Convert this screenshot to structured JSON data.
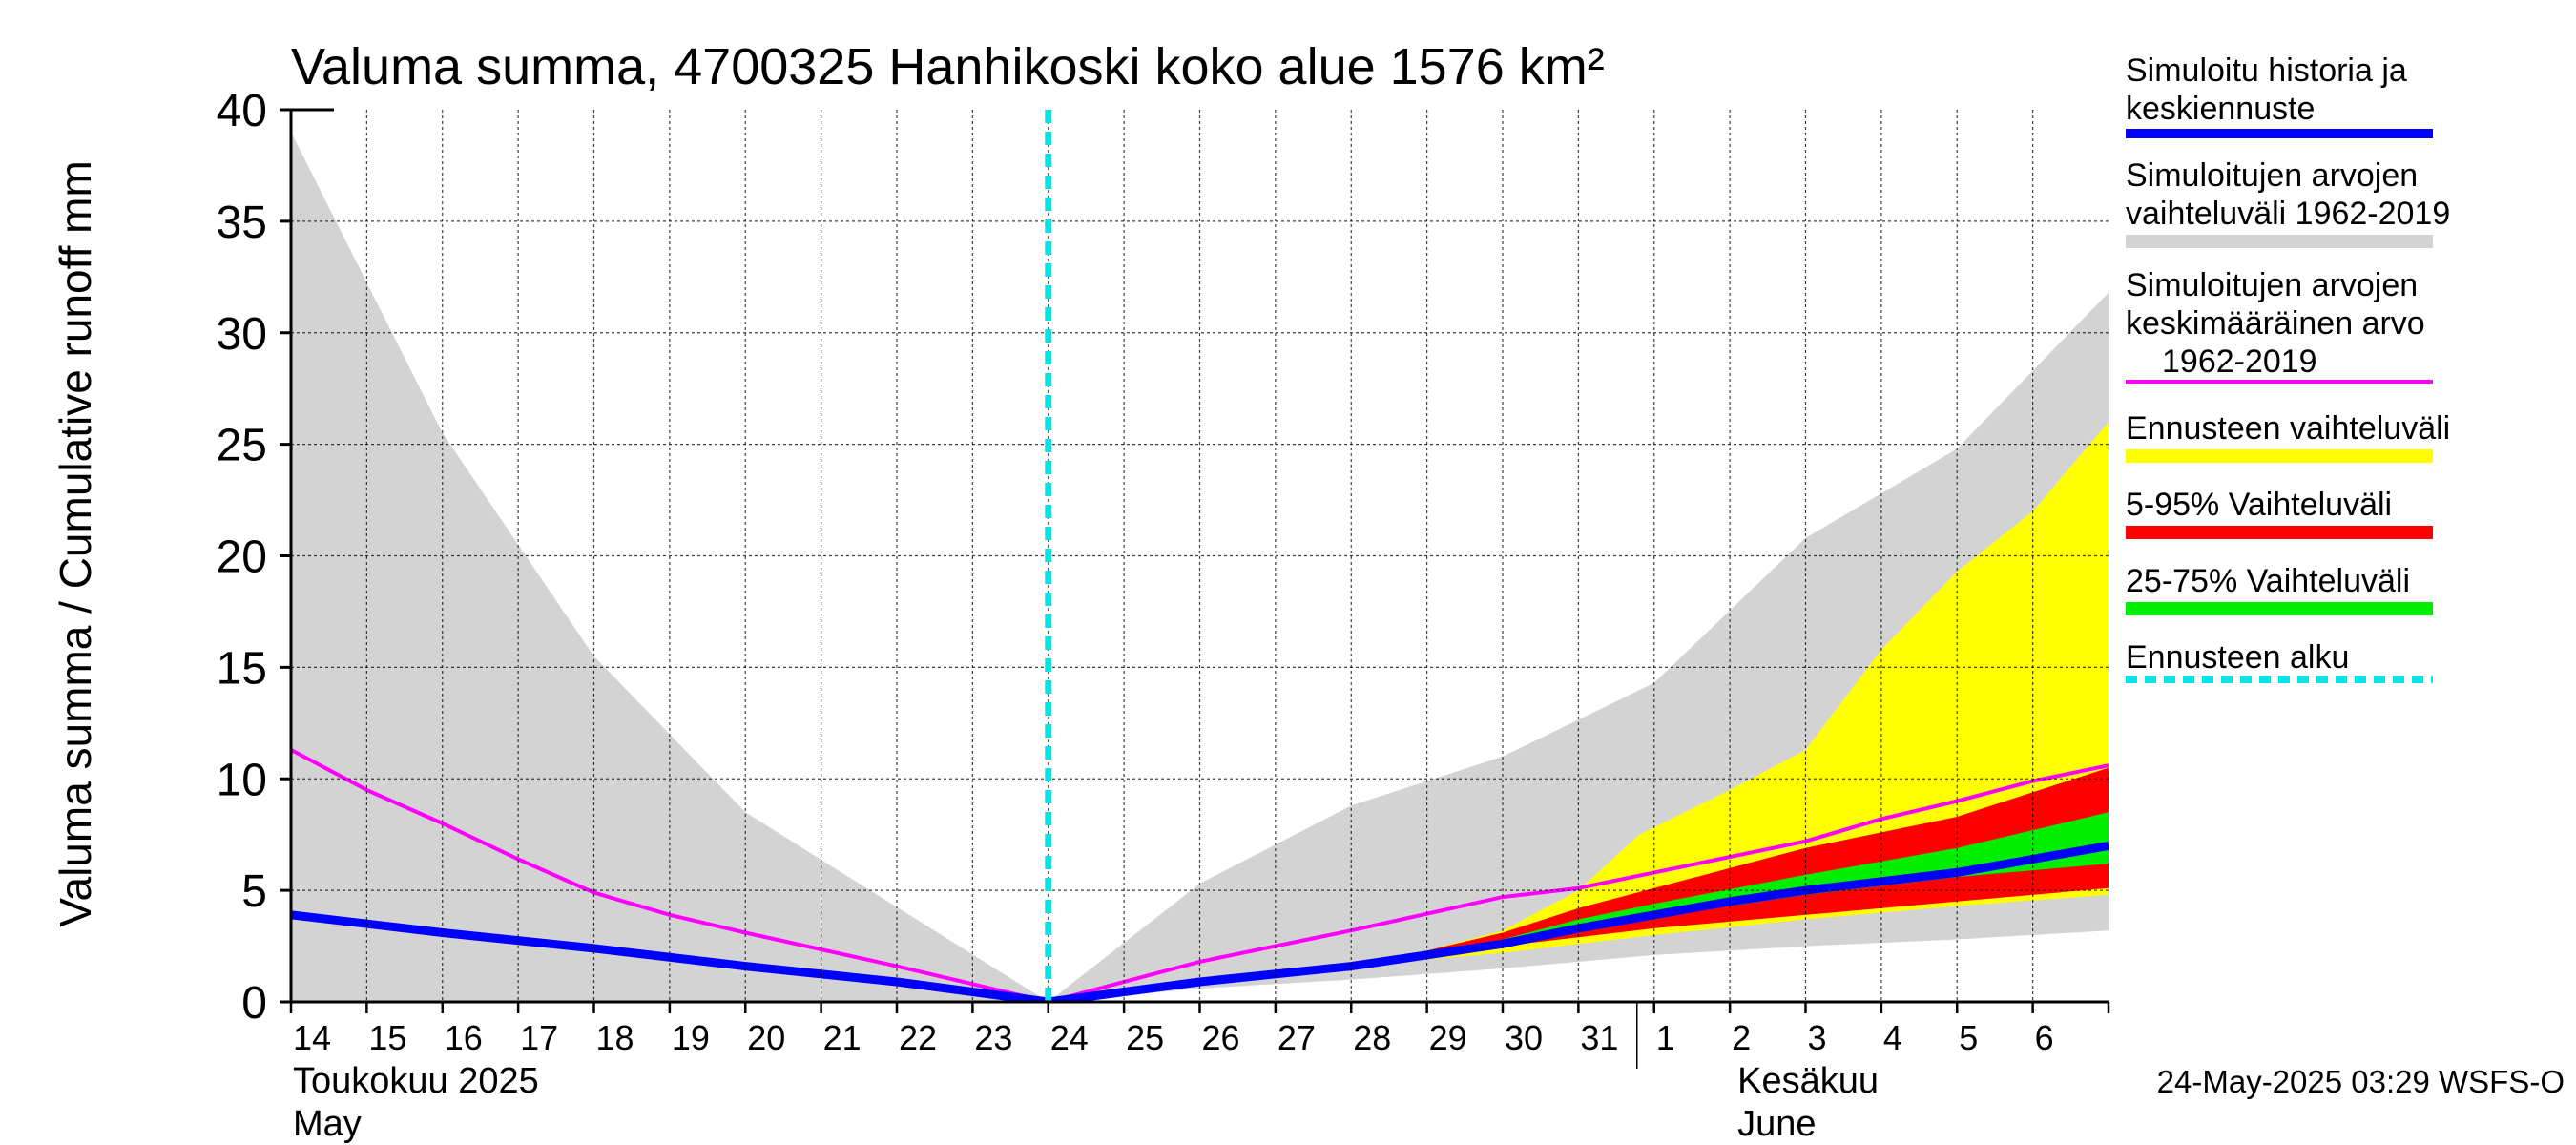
{
  "chart_data": {
    "type": "area",
    "title": "Valuma summa, 4700325 Hanhikoski koko alue 1576 km²",
    "ylabel": "Valuma summa / Cumulative runoff    mm",
    "ylim": [
      0,
      40
    ],
    "yticks": [
      0,
      5,
      10,
      15,
      20,
      25,
      30,
      35,
      40
    ],
    "grid": true,
    "x_day_index_range": [
      0,
      24
    ],
    "day_labels": [
      "14",
      "15",
      "16",
      "17",
      "18",
      "19",
      "20",
      "21",
      "22",
      "23",
      "24",
      "25",
      "26",
      "27",
      "28",
      "29",
      "30",
      "31",
      "1",
      "2",
      "3",
      "4",
      "5",
      "6"
    ],
    "month_labels": [
      {
        "fi": "Toukokuu  2025",
        "en": "May",
        "day_index": 0
      },
      {
        "fi": "Kesäkuu",
        "en": "June",
        "day_index": 18
      }
    ],
    "forecast_start_day_index": 10,
    "series": [
      {
        "name": "Simuloitujen arvojen vaihteluväli 1962-2019 (upper)",
        "role": "band_upper",
        "x": [
          0,
          2,
          4,
          6,
          10,
          12,
          14,
          16,
          18,
          20,
          22,
          24
        ],
        "values": [
          39,
          25.5,
          15.5,
          8.5,
          0,
          5.3,
          8.8,
          11,
          14.3,
          20.8,
          24.8,
          31.8
        ]
      },
      {
        "name": "Simuloitujen arvojen vaihteluväli 1962-2019 (lower)",
        "role": "band_lower",
        "x": [
          0,
          10,
          12,
          14,
          16,
          18,
          20,
          22,
          24
        ],
        "values": [
          0,
          0,
          0.6,
          1,
          1.5,
          2.1,
          2.5,
          2.8,
          3.2
        ]
      },
      {
        "name": "Ennusteen vaihteluväli (upper)",
        "role": "yellow_upper",
        "x": [
          14,
          15,
          16,
          17,
          17.8,
          19,
          20,
          21,
          22,
          23,
          24
        ],
        "values": [
          1.7,
          2.3,
          3.2,
          5,
          7.5,
          9.5,
          11.3,
          15.8,
          19.3,
          22,
          26
        ]
      },
      {
        "name": "Ennusteen vaihteluväli (lower)",
        "role": "yellow_lower",
        "x": [
          14,
          16,
          18,
          20,
          22,
          24
        ],
        "values": [
          1.6,
          2.2,
          3,
          3.7,
          4.3,
          4.8
        ]
      },
      {
        "name": "5-95% Vaihteluväli (upper)",
        "role": "red_upper",
        "x": [
          14,
          15,
          16,
          17,
          18,
          20,
          22,
          24
        ],
        "values": [
          1.7,
          2.3,
          3.1,
          4.2,
          5.1,
          6.9,
          8.3,
          10.5
        ]
      },
      {
        "name": "5-95% Vaihteluväli (lower)",
        "role": "red_lower",
        "x": [
          14,
          15,
          16,
          18,
          20,
          22,
          24
        ],
        "values": [
          1.6,
          2.1,
          2.5,
          3.3,
          3.9,
          4.5,
          5.1
        ]
      },
      {
        "name": "25-75% Vaihteluväli (upper)",
        "role": "green_upper",
        "x": [
          14,
          15,
          16,
          17,
          18,
          20,
          22,
          24
        ],
        "values": [
          1.7,
          2.2,
          2.8,
          3.7,
          4.4,
          5.7,
          6.9,
          8.5
        ]
      },
      {
        "name": "25-75% Vaihteluväli (lower)",
        "role": "green_lower",
        "x": [
          14,
          15,
          16,
          17,
          18,
          20,
          22,
          24
        ],
        "values": [
          1.6,
          2.1,
          2.6,
          3.2,
          3.8,
          4.8,
          5.6,
          6.2
        ]
      },
      {
        "name": "Simuloitujen arvojen keskimääräinen arvo 1962-2019",
        "role": "mean_line",
        "x": [
          0,
          1,
          2,
          3,
          4,
          5,
          6,
          8,
          10,
          12,
          14,
          16,
          17,
          18,
          19,
          20,
          21,
          22,
          23,
          24
        ],
        "values": [
          11.3,
          9.5,
          8,
          6.4,
          4.9,
          3.9,
          3.1,
          1.6,
          0,
          1.8,
          3.2,
          4.7,
          5.1,
          5.8,
          6.5,
          7.2,
          8.2,
          9,
          9.9,
          10.6
        ]
      },
      {
        "name": "Simuloitu historia ja keskiennuste",
        "role": "median_line",
        "x": [
          0,
          2,
          4,
          6,
          8,
          10,
          12,
          14,
          16,
          17,
          18,
          19,
          20,
          21,
          22,
          23,
          24
        ],
        "values": [
          3.9,
          3.1,
          2.4,
          1.6,
          0.9,
          0,
          0.9,
          1.6,
          2.6,
          3.3,
          3.9,
          4.5,
          5,
          5.4,
          5.8,
          6.4,
          7
        ]
      }
    ]
  },
  "legend": [
    {
      "line1": "Simuloitu historia ja",
      "line2": "keskiennuste",
      "line3": "",
      "color": "#0000ff",
      "style": "solid"
    },
    {
      "line1": "Simuloitujen arvojen",
      "line2": "vaihteluväli 1962-2019",
      "line3": "",
      "color": "#d3d3d3",
      "style": "band"
    },
    {
      "line1": "Simuloitujen arvojen",
      "line2": "keskimääräinen arvo",
      "line3": "1962-2019",
      "color": "#ff00ff",
      "style": "thin"
    },
    {
      "line1": "Ennusteen vaihteluväli",
      "line2": "",
      "line3": "",
      "color": "#ffff00",
      "style": "band"
    },
    {
      "line1": "5-95% Vaihteluväli",
      "line2": "",
      "line3": "",
      "color": "#ff0000",
      "style": "band"
    },
    {
      "line1": "25-75% Vaihteluväli",
      "line2": "",
      "line3": "",
      "color": "#00ee00",
      "style": "band"
    },
    {
      "line1": "Ennusteen alku",
      "line2": "",
      "line3": "",
      "color": "#00e5e5",
      "style": "dashed"
    }
  ],
  "footer": {
    "timestamp": "24-May-2025 03:29 WSFS-O"
  }
}
